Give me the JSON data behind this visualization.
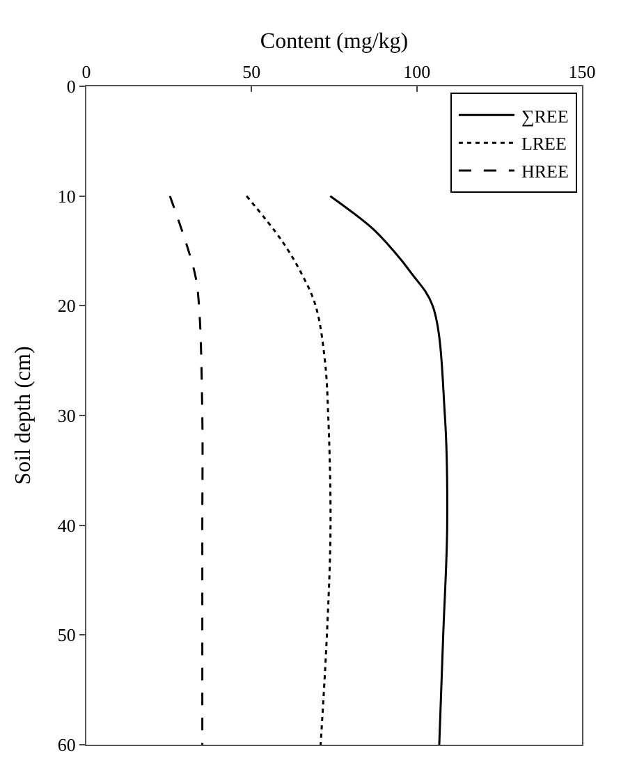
{
  "chart_data": {
    "type": "line",
    "xlabel": "Content (mg/kg)",
    "ylabel": "Soil depth (cm)",
    "xlim": [
      0,
      150
    ],
    "xticks": [
      0,
      50,
      100,
      150
    ],
    "ylim": [
      60,
      0
    ],
    "yticks": [
      0,
      10,
      20,
      30,
      40,
      50,
      60
    ],
    "legend": "top right",
    "marker": "none",
    "series": [
      {
        "name": "∑REE",
        "color": "#000000",
        "line_style": "solid",
        "x": [
          73.8,
          86.4,
          93,
          98.3,
          104.8,
          108.5,
          109.2,
          108,
          106.8
        ],
        "values": [
          10,
          12.9,
          15,
          17,
          20,
          30,
          40,
          50,
          60
        ]
      },
      {
        "name": "LREE",
        "color": "#000000",
        "line_style": "dotted",
        "x": [
          48.5,
          59,
          65,
          69.4,
          72.2,
          73.2,
          73.9,
          72.8,
          70.9
        ],
        "values": [
          10,
          14,
          17,
          20,
          25,
          30,
          40,
          50,
          60
        ]
      },
      {
        "name": "HREE",
        "color": "#000000",
        "line_style": "dashed",
        "x": [
          25.3,
          32.8,
          34.1,
          35.1,
          35.1,
          35.1,
          35.1
        ],
        "values": [
          10,
          17,
          20,
          30,
          40,
          50,
          60
        ]
      }
    ]
  }
}
